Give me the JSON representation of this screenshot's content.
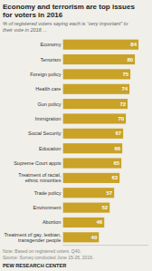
{
  "chart_data": {
    "type": "bar",
    "orientation": "horizontal",
    "title": "Economy and terrorism are top issues\nfor voters in 2016",
    "subtitle": "% of registered voters saying each is “very important” to\ntheir vote in 2016 ...",
    "note": "Note: Based on registered voters. Q40.\nSource: Survey conducted June 15-26, 2016.",
    "source": "PEW RESEARCH CENTER",
    "categories": [
      "Economy",
      "Terrorism",
      "Foreign policy",
      "Health care",
      "Gun policy",
      "Immigration",
      "Social Security",
      "Education",
      "Supreme Court appts",
      "Treatment of racial,\nethnic minorities",
      "Trade policy",
      "Environment",
      "Abortion",
      "Treatment of gay, lesbian,\ntransgender people"
    ],
    "values": [
      84,
      80,
      75,
      74,
      72,
      70,
      67,
      66,
      65,
      63,
      57,
      52,
      46,
      40
    ],
    "color": "#C9A227",
    "xlim": [
      0,
      95
    ],
    "data_labels": true,
    "tick_labels": "y",
    "grid": false
  }
}
